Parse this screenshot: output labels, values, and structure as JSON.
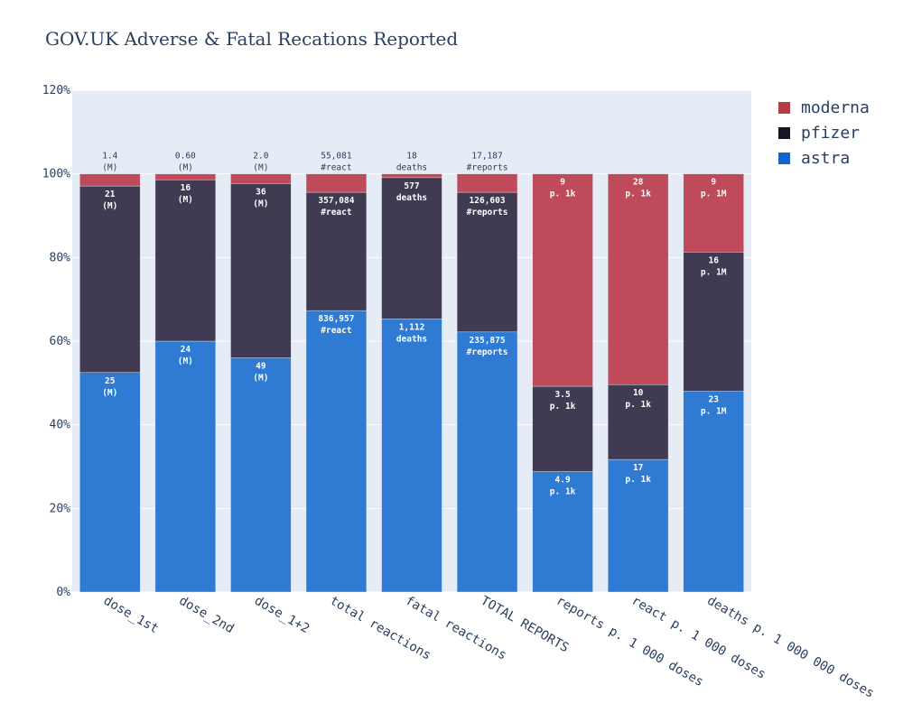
{
  "chart_data": {
    "type": "bar",
    "barmode": "stack-percent",
    "title": "GOV.UK Adverse & Fatal Recations Reported",
    "categories": [
      "dose_1st",
      "dose_2nd",
      "dose_1+2",
      "total reactions",
      "fatal reactions",
      "TOTAL REPORTS",
      "reports p. 1 000 doses",
      "react p. 1 000 doses",
      "deaths p. 1 000 000 doses"
    ],
    "y_tick_labels": [
      "0%",
      "20%",
      "40%",
      "60%",
      "80%",
      "100%",
      "120%"
    ],
    "ylim": [
      0,
      120
    ],
    "grid": true,
    "legend_position": "top-right",
    "series": [
      {
        "name": "astra",
        "color": "#2f7ad3",
        "values": [
          52.5,
          60.0,
          56.0,
          67.3,
          65.3,
          62.2,
          28.8,
          31.7,
          48.0
        ],
        "labels": [
          [
            "25",
            "(M)"
          ],
          [
            "24",
            "(M)"
          ],
          [
            "49",
            "(M)"
          ],
          [
            "836,957",
            "#react"
          ],
          [
            "1,112",
            "deaths"
          ],
          [
            "235,875",
            "#reports"
          ],
          [
            "4.9",
            "p. 1k"
          ],
          [
            "17",
            "p. 1k"
          ],
          [
            "23",
            "p. 1M"
          ]
        ]
      },
      {
        "name": "pfizer",
        "color": "#413a53",
        "values": [
          44.6,
          38.6,
          41.7,
          28.3,
          33.8,
          33.4,
          20.4,
          17.9,
          33.3
        ],
        "labels": [
          [
            "21",
            "(M)"
          ],
          [
            "16",
            "(M)"
          ],
          [
            "36",
            "(M)"
          ],
          [
            "357,084",
            "#react"
          ],
          [
            "577",
            "deaths"
          ],
          [
            "126,603",
            "#reports"
          ],
          [
            "3.5",
            "p. 1k"
          ],
          [
            "10",
            "p. 1k"
          ],
          [
            "16",
            "p. 1M"
          ]
        ]
      },
      {
        "name": "moderna",
        "color": "#bf4a5a",
        "values": [
          2.9,
          1.4,
          2.3,
          4.4,
          0.9,
          4.4,
          50.8,
          50.4,
          18.7
        ],
        "labels": [
          [
            "1.4",
            "(M)"
          ],
          [
            "0.60",
            "(M)"
          ],
          [
            "2.0",
            "(M)"
          ],
          [
            "55,081",
            "#react"
          ],
          [
            "18",
            "deaths"
          ],
          [
            "17,187",
            "#reports"
          ],
          [
            "9",
            "p. 1k"
          ],
          [
            "28",
            "p. 1k"
          ],
          [
            "9",
            "p. 1M"
          ]
        ]
      }
    ],
    "legend_order": [
      "moderna",
      "pfizer",
      "astra"
    ],
    "legend_colors": {
      "moderna": "#b73a47",
      "pfizer": "#161427",
      "astra": "#1166cc"
    },
    "plot_bg": "#e5ecf6"
  }
}
